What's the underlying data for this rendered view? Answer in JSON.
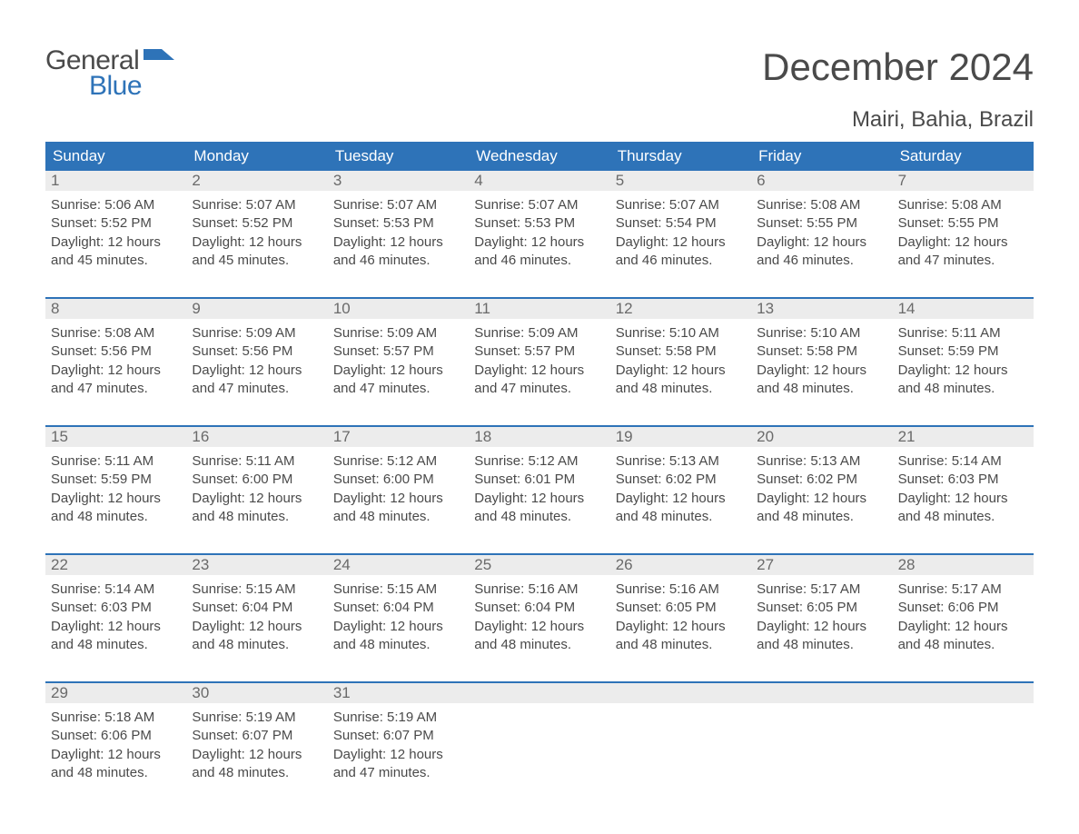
{
  "logo": {
    "text1": "General",
    "text2": "Blue",
    "accent_color": "#2e73b8"
  },
  "title": "December 2024",
  "location": "Mairi, Bahia, Brazil",
  "colors": {
    "header_bg": "#2e73b8",
    "header_text": "#ffffff",
    "date_strip_bg": "#ececec",
    "row_border": "#2e73b8",
    "body_text": "#4a4a4a",
    "date_text": "#6a6a6a",
    "page_bg": "#ffffff"
  },
  "typography": {
    "title_fontsize": 42,
    "location_fontsize": 24,
    "day_header_fontsize": 17,
    "date_fontsize": 17,
    "body_fontsize": 15
  },
  "day_headers": [
    "Sunday",
    "Monday",
    "Tuesday",
    "Wednesday",
    "Thursday",
    "Friday",
    "Saturday"
  ],
  "weeks": [
    [
      {
        "date": "1",
        "sunrise": "Sunrise: 5:06 AM",
        "sunset": "Sunset: 5:52 PM",
        "daylight1": "Daylight: 12 hours",
        "daylight2": "and 45 minutes."
      },
      {
        "date": "2",
        "sunrise": "Sunrise: 5:07 AM",
        "sunset": "Sunset: 5:52 PM",
        "daylight1": "Daylight: 12 hours",
        "daylight2": "and 45 minutes."
      },
      {
        "date": "3",
        "sunrise": "Sunrise: 5:07 AM",
        "sunset": "Sunset: 5:53 PM",
        "daylight1": "Daylight: 12 hours",
        "daylight2": "and 46 minutes."
      },
      {
        "date": "4",
        "sunrise": "Sunrise: 5:07 AM",
        "sunset": "Sunset: 5:53 PM",
        "daylight1": "Daylight: 12 hours",
        "daylight2": "and 46 minutes."
      },
      {
        "date": "5",
        "sunrise": "Sunrise: 5:07 AM",
        "sunset": "Sunset: 5:54 PM",
        "daylight1": "Daylight: 12 hours",
        "daylight2": "and 46 minutes."
      },
      {
        "date": "6",
        "sunrise": "Sunrise: 5:08 AM",
        "sunset": "Sunset: 5:55 PM",
        "daylight1": "Daylight: 12 hours",
        "daylight2": "and 46 minutes."
      },
      {
        "date": "7",
        "sunrise": "Sunrise: 5:08 AM",
        "sunset": "Sunset: 5:55 PM",
        "daylight1": "Daylight: 12 hours",
        "daylight2": "and 47 minutes."
      }
    ],
    [
      {
        "date": "8",
        "sunrise": "Sunrise: 5:08 AM",
        "sunset": "Sunset: 5:56 PM",
        "daylight1": "Daylight: 12 hours",
        "daylight2": "and 47 minutes."
      },
      {
        "date": "9",
        "sunrise": "Sunrise: 5:09 AM",
        "sunset": "Sunset: 5:56 PM",
        "daylight1": "Daylight: 12 hours",
        "daylight2": "and 47 minutes."
      },
      {
        "date": "10",
        "sunrise": "Sunrise: 5:09 AM",
        "sunset": "Sunset: 5:57 PM",
        "daylight1": "Daylight: 12 hours",
        "daylight2": "and 47 minutes."
      },
      {
        "date": "11",
        "sunrise": "Sunrise: 5:09 AM",
        "sunset": "Sunset: 5:57 PM",
        "daylight1": "Daylight: 12 hours",
        "daylight2": "and 47 minutes."
      },
      {
        "date": "12",
        "sunrise": "Sunrise: 5:10 AM",
        "sunset": "Sunset: 5:58 PM",
        "daylight1": "Daylight: 12 hours",
        "daylight2": "and 48 minutes."
      },
      {
        "date": "13",
        "sunrise": "Sunrise: 5:10 AM",
        "sunset": "Sunset: 5:58 PM",
        "daylight1": "Daylight: 12 hours",
        "daylight2": "and 48 minutes."
      },
      {
        "date": "14",
        "sunrise": "Sunrise: 5:11 AM",
        "sunset": "Sunset: 5:59 PM",
        "daylight1": "Daylight: 12 hours",
        "daylight2": "and 48 minutes."
      }
    ],
    [
      {
        "date": "15",
        "sunrise": "Sunrise: 5:11 AM",
        "sunset": "Sunset: 5:59 PM",
        "daylight1": "Daylight: 12 hours",
        "daylight2": "and 48 minutes."
      },
      {
        "date": "16",
        "sunrise": "Sunrise: 5:11 AM",
        "sunset": "Sunset: 6:00 PM",
        "daylight1": "Daylight: 12 hours",
        "daylight2": "and 48 minutes."
      },
      {
        "date": "17",
        "sunrise": "Sunrise: 5:12 AM",
        "sunset": "Sunset: 6:00 PM",
        "daylight1": "Daylight: 12 hours",
        "daylight2": "and 48 minutes."
      },
      {
        "date": "18",
        "sunrise": "Sunrise: 5:12 AM",
        "sunset": "Sunset: 6:01 PM",
        "daylight1": "Daylight: 12 hours",
        "daylight2": "and 48 minutes."
      },
      {
        "date": "19",
        "sunrise": "Sunrise: 5:13 AM",
        "sunset": "Sunset: 6:02 PM",
        "daylight1": "Daylight: 12 hours",
        "daylight2": "and 48 minutes."
      },
      {
        "date": "20",
        "sunrise": "Sunrise: 5:13 AM",
        "sunset": "Sunset: 6:02 PM",
        "daylight1": "Daylight: 12 hours",
        "daylight2": "and 48 minutes."
      },
      {
        "date": "21",
        "sunrise": "Sunrise: 5:14 AM",
        "sunset": "Sunset: 6:03 PM",
        "daylight1": "Daylight: 12 hours",
        "daylight2": "and 48 minutes."
      }
    ],
    [
      {
        "date": "22",
        "sunrise": "Sunrise: 5:14 AM",
        "sunset": "Sunset: 6:03 PM",
        "daylight1": "Daylight: 12 hours",
        "daylight2": "and 48 minutes."
      },
      {
        "date": "23",
        "sunrise": "Sunrise: 5:15 AM",
        "sunset": "Sunset: 6:04 PM",
        "daylight1": "Daylight: 12 hours",
        "daylight2": "and 48 minutes."
      },
      {
        "date": "24",
        "sunrise": "Sunrise: 5:15 AM",
        "sunset": "Sunset: 6:04 PM",
        "daylight1": "Daylight: 12 hours",
        "daylight2": "and 48 minutes."
      },
      {
        "date": "25",
        "sunrise": "Sunrise: 5:16 AM",
        "sunset": "Sunset: 6:04 PM",
        "daylight1": "Daylight: 12 hours",
        "daylight2": "and 48 minutes."
      },
      {
        "date": "26",
        "sunrise": "Sunrise: 5:16 AM",
        "sunset": "Sunset: 6:05 PM",
        "daylight1": "Daylight: 12 hours",
        "daylight2": "and 48 minutes."
      },
      {
        "date": "27",
        "sunrise": "Sunrise: 5:17 AM",
        "sunset": "Sunset: 6:05 PM",
        "daylight1": "Daylight: 12 hours",
        "daylight2": "and 48 minutes."
      },
      {
        "date": "28",
        "sunrise": "Sunrise: 5:17 AM",
        "sunset": "Sunset: 6:06 PM",
        "daylight1": "Daylight: 12 hours",
        "daylight2": "and 48 minutes."
      }
    ],
    [
      {
        "date": "29",
        "sunrise": "Sunrise: 5:18 AM",
        "sunset": "Sunset: 6:06 PM",
        "daylight1": "Daylight: 12 hours",
        "daylight2": "and 48 minutes."
      },
      {
        "date": "30",
        "sunrise": "Sunrise: 5:19 AM",
        "sunset": "Sunset: 6:07 PM",
        "daylight1": "Daylight: 12 hours",
        "daylight2": "and 48 minutes."
      },
      {
        "date": "31",
        "sunrise": "Sunrise: 5:19 AM",
        "sunset": "Sunset: 6:07 PM",
        "daylight1": "Daylight: 12 hours",
        "daylight2": "and 47 minutes."
      },
      {
        "empty": true
      },
      {
        "empty": true
      },
      {
        "empty": true
      },
      {
        "empty": true
      }
    ]
  ]
}
